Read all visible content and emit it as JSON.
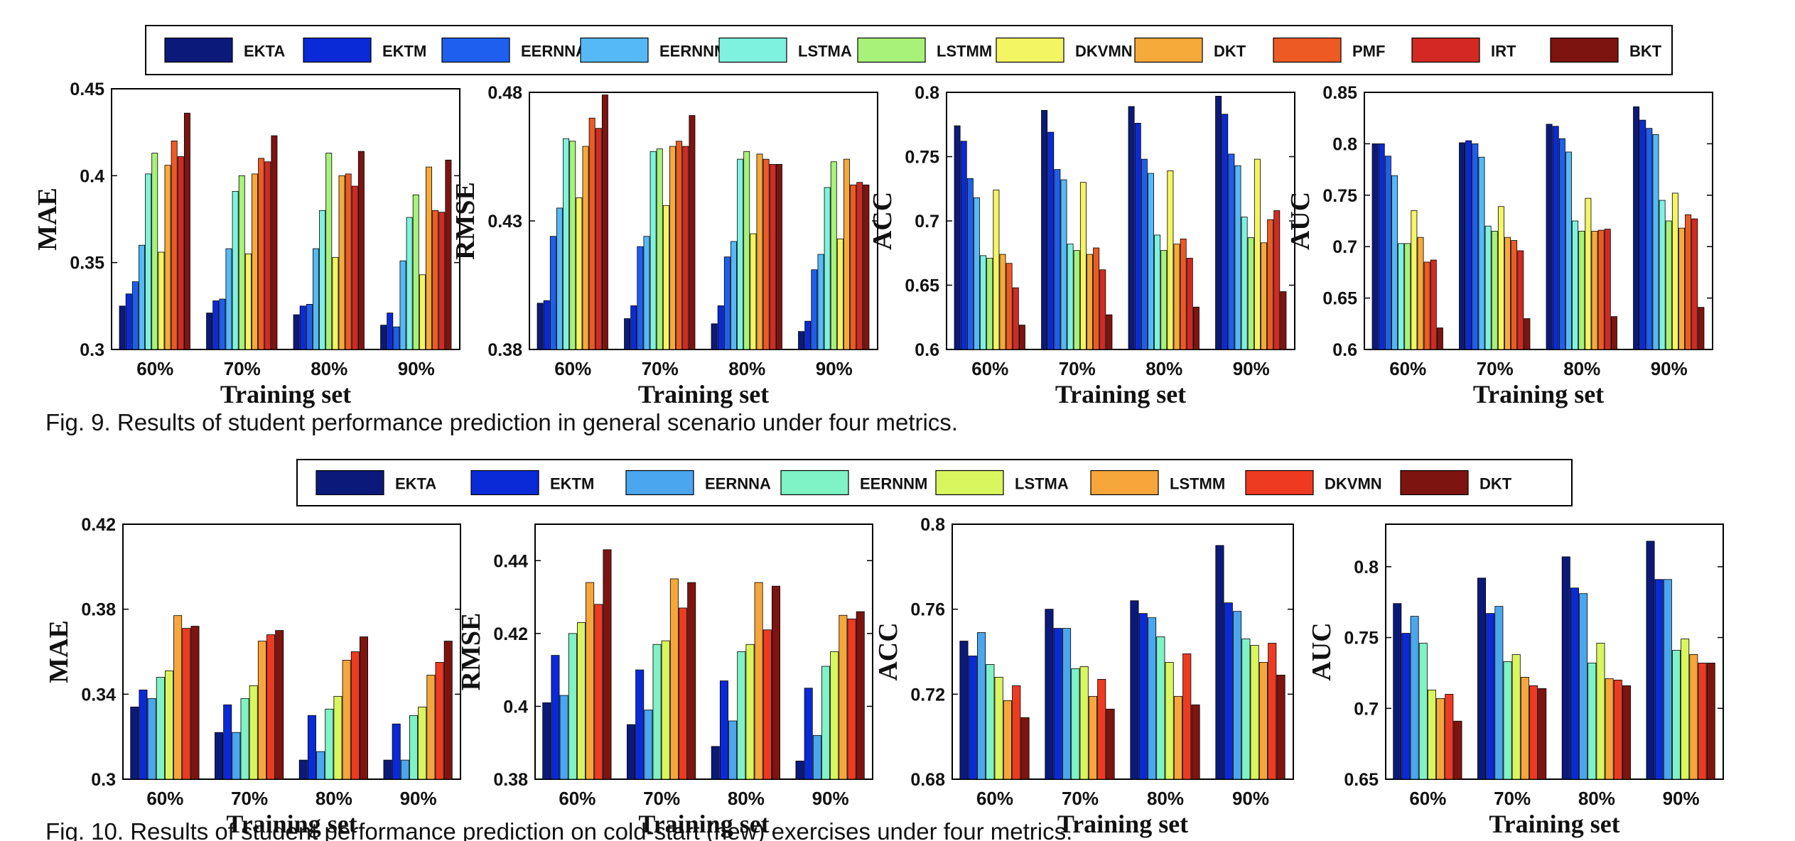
{
  "captions": {
    "fig9": "Fig. 9. Results of student performance prediction in general scenario under four metrics.",
    "fig10": "Fig. 10. Results of student performance prediction on cold-start (new) exercises under four metrics."
  },
  "figures": [
    {
      "id": "fig9",
      "legend": [
        {
          "name": "EKTA",
          "color": "#0b1a7a"
        },
        {
          "name": "EKTM",
          "color": "#0a2ad8"
        },
        {
          "name": "EERNNA",
          "color": "#1f5fef"
        },
        {
          "name": "EERNNM",
          "color": "#56b9f7"
        },
        {
          "name": "LSTMA",
          "color": "#7ff2df"
        },
        {
          "name": "LSTMM",
          "color": "#a8f27a"
        },
        {
          "name": "DKVMN",
          "color": "#f4f562"
        },
        {
          "name": "DKT",
          "color": "#f6aa3a"
        },
        {
          "name": "PMF",
          "color": "#ee5a24"
        },
        {
          "name": "IRT",
          "color": "#d22a22"
        },
        {
          "name": "BKT",
          "color": "#7e1410"
        }
      ]
    },
    {
      "id": "fig10",
      "legend": [
        {
          "name": "EKTA",
          "color": "#0b1a7a"
        },
        {
          "name": "EKTM",
          "color": "#0a2ad8"
        },
        {
          "name": "EERNNA",
          "color": "#4aa6ef"
        },
        {
          "name": "EERNNM",
          "color": "#7ff2c6"
        },
        {
          "name": "LSTMA",
          "color": "#d9f65e"
        },
        {
          "name": "LSTMM",
          "color": "#f6a63a"
        },
        {
          "name": "DKVMN",
          "color": "#ef3a22"
        },
        {
          "name": "DKT",
          "color": "#7e1410"
        }
      ]
    }
  ],
  "chart_data": [
    {
      "type": "bar",
      "figure": "fig9",
      "ylabel": "MAE",
      "xlabel": "Training set",
      "categories": [
        "60%",
        "70%",
        "80%",
        "90%"
      ],
      "ylim": [
        0.3,
        0.45
      ],
      "yticks": [
        "0.3",
        "0.35",
        "0.4",
        "0.45"
      ],
      "series": [
        {
          "name": "EKTA",
          "values": [
            0.325,
            0.321,
            0.32,
            0.314
          ]
        },
        {
          "name": "EKTM",
          "values": [
            0.332,
            0.328,
            0.325,
            0.321
          ]
        },
        {
          "name": "EERNNA",
          "values": [
            0.339,
            0.329,
            0.326,
            0.313
          ]
        },
        {
          "name": "EERNNM",
          "values": [
            0.36,
            0.358,
            0.358,
            0.351
          ]
        },
        {
          "name": "LSTMA",
          "values": [
            0.401,
            0.391,
            0.38,
            0.376
          ]
        },
        {
          "name": "LSTMM",
          "values": [
            0.413,
            0.4,
            0.413,
            0.389
          ]
        },
        {
          "name": "DKVMN",
          "values": [
            0.356,
            0.355,
            0.353,
            0.343
          ]
        },
        {
          "name": "DKT",
          "values": [
            0.406,
            0.401,
            0.4,
            0.405
          ]
        },
        {
          "name": "PMF",
          "values": [
            0.42,
            0.41,
            0.401,
            0.38
          ]
        },
        {
          "name": "IRT",
          "values": [
            0.411,
            0.408,
            0.394,
            0.379
          ]
        },
        {
          "name": "BKT",
          "values": [
            0.436,
            0.423,
            0.414,
            0.409
          ]
        }
      ]
    },
    {
      "type": "bar",
      "figure": "fig9",
      "ylabel": "RMSE",
      "xlabel": "Training set",
      "categories": [
        "60%",
        "70%",
        "80%",
        "90%"
      ],
      "ylim": [
        0.38,
        0.48
      ],
      "yticks": [
        "0.38",
        "0.43",
        "0.48"
      ],
      "series": [
        {
          "name": "EKTA",
          "values": [
            0.398,
            0.392,
            0.39,
            0.387
          ]
        },
        {
          "name": "EKTM",
          "values": [
            0.399,
            0.397,
            0.397,
            0.391
          ]
        },
        {
          "name": "EERNNA",
          "values": [
            0.424,
            0.42,
            0.416,
            0.411
          ]
        },
        {
          "name": "EERNNM",
          "values": [
            0.435,
            0.424,
            0.422,
            0.417
          ]
        },
        {
          "name": "LSTMA",
          "values": [
            0.462,
            0.457,
            0.454,
            0.443
          ]
        },
        {
          "name": "LSTMM",
          "values": [
            0.461,
            0.458,
            0.457,
            0.453
          ]
        },
        {
          "name": "DKVMN",
          "values": [
            0.439,
            0.436,
            0.425,
            0.423
          ]
        },
        {
          "name": "DKT",
          "values": [
            0.459,
            0.459,
            0.456,
            0.454
          ]
        },
        {
          "name": "PMF",
          "values": [
            0.47,
            0.461,
            0.454,
            0.444
          ]
        },
        {
          "name": "IRT",
          "values": [
            0.466,
            0.459,
            0.452,
            0.445
          ]
        },
        {
          "name": "BKT",
          "values": [
            0.479,
            0.471,
            0.452,
            0.444
          ]
        }
      ]
    },
    {
      "type": "bar",
      "figure": "fig9",
      "ylabel": "ACC",
      "xlabel": "Training set",
      "categories": [
        "60%",
        "70%",
        "80%",
        "90%"
      ],
      "ylim": [
        0.6,
        0.8
      ],
      "yticks": [
        "0.6",
        "0.65",
        "0.7",
        "0.75",
        "0.8"
      ],
      "series": [
        {
          "name": "EKTA",
          "values": [
            0.774,
            0.786,
            0.789,
            0.797
          ]
        },
        {
          "name": "EKTM",
          "values": [
            0.762,
            0.769,
            0.776,
            0.783
          ]
        },
        {
          "name": "EERNNA",
          "values": [
            0.733,
            0.74,
            0.748,
            0.752
          ]
        },
        {
          "name": "EERNNM",
          "values": [
            0.718,
            0.732,
            0.737,
            0.743
          ]
        },
        {
          "name": "LSTMA",
          "values": [
            0.673,
            0.682,
            0.689,
            0.703
          ]
        },
        {
          "name": "LSTMM",
          "values": [
            0.671,
            0.677,
            0.677,
            0.687
          ]
        },
        {
          "name": "DKVMN",
          "values": [
            0.724,
            0.73,
            0.739,
            0.748
          ]
        },
        {
          "name": "DKT",
          "values": [
            0.674,
            0.674,
            0.682,
            0.683
          ]
        },
        {
          "name": "PMF",
          "values": [
            0.667,
            0.679,
            0.686,
            0.701
          ]
        },
        {
          "name": "IRT",
          "values": [
            0.648,
            0.662,
            0.671,
            0.708
          ]
        },
        {
          "name": "BKT",
          "values": [
            0.619,
            0.627,
            0.633,
            0.645
          ]
        }
      ]
    },
    {
      "type": "bar",
      "figure": "fig9",
      "ylabel": "AUC",
      "xlabel": "Training set",
      "categories": [
        "60%",
        "70%",
        "80%",
        "90%"
      ],
      "ylim": [
        0.6,
        0.85
      ],
      "yticks": [
        "0.6",
        "0.65",
        "0.7",
        "0.75",
        "0.8",
        "0.85"
      ],
      "series": [
        {
          "name": "EKTA",
          "values": [
            0.8,
            0.801,
            0.819,
            0.836
          ]
        },
        {
          "name": "EKTM",
          "values": [
            0.8,
            0.803,
            0.817,
            0.823
          ]
        },
        {
          "name": "EERNNA",
          "values": [
            0.788,
            0.8,
            0.805,
            0.815
          ]
        },
        {
          "name": "EERNNM",
          "values": [
            0.769,
            0.787,
            0.792,
            0.809
          ]
        },
        {
          "name": "LSTMA",
          "values": [
            0.703,
            0.72,
            0.725,
            0.745
          ]
        },
        {
          "name": "LSTMM",
          "values": [
            0.703,
            0.715,
            0.715,
            0.725
          ]
        },
        {
          "name": "DKVMN",
          "values": [
            0.735,
            0.739,
            0.747,
            0.752
          ]
        },
        {
          "name": "DKT",
          "values": [
            0.709,
            0.709,
            0.715,
            0.718
          ]
        },
        {
          "name": "PMF",
          "values": [
            0.685,
            0.706,
            0.716,
            0.731
          ]
        },
        {
          "name": "IRT",
          "values": [
            0.687,
            0.696,
            0.717,
            0.727
          ]
        },
        {
          "name": "BKT",
          "values": [
            0.621,
            0.63,
            0.632,
            0.641
          ]
        }
      ]
    },
    {
      "type": "bar",
      "figure": "fig10",
      "ylabel": "MAE",
      "xlabel": "Training set",
      "categories": [
        "60%",
        "70%",
        "80%",
        "90%"
      ],
      "ylim": [
        0.3,
        0.42
      ],
      "yticks": [
        "0.3",
        "0.34",
        "0.38",
        "0.42"
      ],
      "series": [
        {
          "name": "EKTA",
          "values": [
            0.334,
            0.322,
            0.309,
            0.309
          ]
        },
        {
          "name": "EKTM",
          "values": [
            0.342,
            0.335,
            0.33,
            0.326
          ]
        },
        {
          "name": "EERNNA",
          "values": [
            0.338,
            0.322,
            0.313,
            0.309
          ]
        },
        {
          "name": "EERNNM",
          "values": [
            0.348,
            0.338,
            0.333,
            0.33
          ]
        },
        {
          "name": "LSTMA",
          "values": [
            0.351,
            0.344,
            0.339,
            0.334
          ]
        },
        {
          "name": "LSTMM",
          "values": [
            0.377,
            0.365,
            0.356,
            0.349
          ]
        },
        {
          "name": "DKVMN",
          "values": [
            0.371,
            0.368,
            0.36,
            0.355
          ]
        },
        {
          "name": "DKT",
          "values": [
            0.372,
            0.37,
            0.367,
            0.365
          ]
        }
      ]
    },
    {
      "type": "bar",
      "figure": "fig10",
      "ylabel": "RMSE",
      "xlabel": "Training set",
      "categories": [
        "60%",
        "70%",
        "80%",
        "90%"
      ],
      "ylim": [
        0.38,
        0.45
      ],
      "yticks": [
        "0.38",
        "0.4",
        "0.42",
        "0.44"
      ],
      "series": [
        {
          "name": "EKTA",
          "values": [
            0.401,
            0.395,
            0.389,
            0.385
          ]
        },
        {
          "name": "EKTM",
          "values": [
            0.414,
            0.41,
            0.407,
            0.405
          ]
        },
        {
          "name": "EERNNA",
          "values": [
            0.403,
            0.399,
            0.396,
            0.392
          ]
        },
        {
          "name": "EERNNM",
          "values": [
            0.42,
            0.417,
            0.415,
            0.411
          ]
        },
        {
          "name": "LSTMA",
          "values": [
            0.423,
            0.418,
            0.417,
            0.415
          ]
        },
        {
          "name": "LSTMM",
          "values": [
            0.434,
            0.435,
            0.434,
            0.425
          ]
        },
        {
          "name": "DKVMN",
          "values": [
            0.428,
            0.427,
            0.421,
            0.424
          ]
        },
        {
          "name": "DKT",
          "values": [
            0.443,
            0.434,
            0.433,
            0.426
          ]
        }
      ]
    },
    {
      "type": "bar",
      "figure": "fig10",
      "ylabel": "ACC",
      "xlabel": "Training set",
      "categories": [
        "60%",
        "70%",
        "80%",
        "90%"
      ],
      "ylim": [
        0.68,
        0.8
      ],
      "yticks": [
        "0.68",
        "0.72",
        "0.76",
        "0.8"
      ],
      "series": [
        {
          "name": "EKTA",
          "values": [
            0.745,
            0.76,
            0.764,
            0.79
          ]
        },
        {
          "name": "EKTM",
          "values": [
            0.738,
            0.751,
            0.758,
            0.763
          ]
        },
        {
          "name": "EERNNA",
          "values": [
            0.749,
            0.751,
            0.756,
            0.759
          ]
        },
        {
          "name": "EERNNM",
          "values": [
            0.734,
            0.732,
            0.747,
            0.746
          ]
        },
        {
          "name": "LSTMA",
          "values": [
            0.728,
            0.733,
            0.735,
            0.743
          ]
        },
        {
          "name": "LSTMM",
          "values": [
            0.717,
            0.719,
            0.719,
            0.735
          ]
        },
        {
          "name": "DKVMN",
          "values": [
            0.724,
            0.727,
            0.739,
            0.744
          ]
        },
        {
          "name": "DKT",
          "values": [
            0.709,
            0.713,
            0.715,
            0.729
          ]
        }
      ]
    },
    {
      "type": "bar",
      "figure": "fig10",
      "ylabel": "AUC",
      "xlabel": "Training set",
      "categories": [
        "60%",
        "70%",
        "80%",
        "90%"
      ],
      "ylim": [
        0.65,
        0.83
      ],
      "yticks": [
        "0.65",
        "0.7",
        "0.75",
        "0.8"
      ],
      "series": [
        {
          "name": "EKTA",
          "values": [
            0.774,
            0.792,
            0.807,
            0.818
          ]
        },
        {
          "name": "EKTM",
          "values": [
            0.753,
            0.767,
            0.785,
            0.791
          ]
        },
        {
          "name": "EERNNA",
          "values": [
            0.765,
            0.772,
            0.781,
            0.791
          ]
        },
        {
          "name": "EERNNM",
          "values": [
            0.746,
            0.733,
            0.732,
            0.741
          ]
        },
        {
          "name": "LSTMA",
          "values": [
            0.713,
            0.738,
            0.746,
            0.749
          ]
        },
        {
          "name": "LSTMM",
          "values": [
            0.707,
            0.722,
            0.721,
            0.738
          ]
        },
        {
          "name": "DKVMN",
          "values": [
            0.71,
            0.716,
            0.72,
            0.732
          ]
        },
        {
          "name": "DKT",
          "values": [
            0.691,
            0.714,
            0.716,
            0.732
          ]
        }
      ]
    }
  ]
}
